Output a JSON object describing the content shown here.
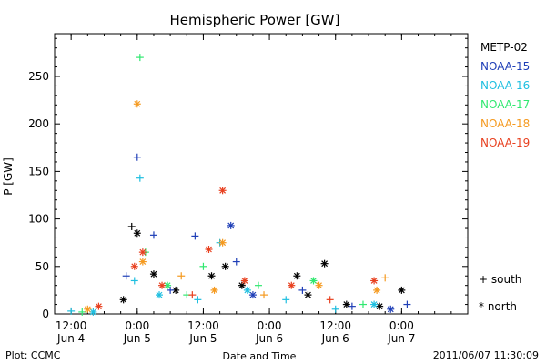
{
  "chart_data": {
    "type": "scatter",
    "title": "Hemispheric Power [GW]",
    "xlabel": "Date and Time",
    "ylabel": "P [GW]",
    "xlim": [
      "2011-06-04T09:00",
      "2011-06-07T12:00"
    ],
    "ylim": [
      0,
      295
    ],
    "yticks": [
      0,
      50,
      100,
      150,
      200,
      250
    ],
    "xticks": [
      {
        "t": "2011-06-04T12:00",
        "label1": "12:00",
        "label2": "Jun 4"
      },
      {
        "t": "2011-06-05T00:00",
        "label1": "0:00",
        "label2": "Jun 5"
      },
      {
        "t": "2011-06-05T12:00",
        "label1": "12:00",
        "label2": "Jun 5"
      },
      {
        "t": "2011-06-06T00:00",
        "label1": "0:00",
        "label2": "Jun 6"
      },
      {
        "t": "2011-06-06T12:00",
        "label1": "12:00",
        "label2": "Jun 6"
      },
      {
        "t": "2011-06-07T00:00",
        "label1": "0:00",
        "label2": "Jun 7"
      }
    ],
    "legend_position": "right",
    "markers": {
      "south": "+",
      "north": "*"
    },
    "marker_legend": [
      {
        "symbol": "+",
        "label": "south"
      },
      {
        "symbol": "*",
        "label": "north"
      }
    ],
    "series": [
      {
        "name": "METP-02",
        "color": "#000000",
        "points": [
          {
            "t": "2011-06-05T00:00",
            "v": 85,
            "h": "north"
          },
          {
            "t": "2011-06-04T23:00",
            "v": 92,
            "h": "south"
          },
          {
            "t": "2011-06-05T03:00",
            "v": 42,
            "h": "north"
          },
          {
            "t": "2011-06-05T13:30",
            "v": 40,
            "h": "north"
          },
          {
            "t": "2011-06-05T16:00",
            "v": 50,
            "h": "north"
          },
          {
            "t": "2011-06-06T10:00",
            "v": 53,
            "h": "north"
          },
          {
            "t": "2011-06-06T05:00",
            "v": 40,
            "h": "north"
          },
          {
            "t": "2011-06-07T00:00",
            "v": 25,
            "h": "north"
          },
          {
            "t": "2011-06-04T21:30",
            "v": 15,
            "h": "north"
          },
          {
            "t": "2011-06-05T07:00",
            "v": 25,
            "h": "north"
          },
          {
            "t": "2011-06-05T19:00",
            "v": 30,
            "h": "north"
          },
          {
            "t": "2011-06-06T07:00",
            "v": 20,
            "h": "north"
          },
          {
            "t": "2011-06-06T14:00",
            "v": 10,
            "h": "north"
          },
          {
            "t": "2011-06-06T20:00",
            "v": 8,
            "h": "north"
          }
        ]
      },
      {
        "name": "NOAA-15",
        "color": "#1f3fb7",
        "points": [
          {
            "t": "2011-06-05T00:00",
            "v": 165,
            "h": "south"
          },
          {
            "t": "2011-06-05T03:00",
            "v": 83,
            "h": "south"
          },
          {
            "t": "2011-06-05T10:30",
            "v": 82,
            "h": "south"
          },
          {
            "t": "2011-06-05T17:00",
            "v": 93,
            "h": "north"
          },
          {
            "t": "2011-06-05T18:00",
            "v": 55,
            "h": "south"
          },
          {
            "t": "2011-06-04T22:00",
            "v": 40,
            "h": "south"
          },
          {
            "t": "2011-06-05T06:00",
            "v": 25,
            "h": "south"
          },
          {
            "t": "2011-06-05T21:00",
            "v": 20,
            "h": "north"
          },
          {
            "t": "2011-06-06T06:00",
            "v": 25,
            "h": "south"
          },
          {
            "t": "2011-06-06T15:00",
            "v": 8,
            "h": "south"
          },
          {
            "t": "2011-06-06T22:00",
            "v": 5,
            "h": "north"
          },
          {
            "t": "2011-06-07T01:00",
            "v": 10,
            "h": "south"
          }
        ]
      },
      {
        "name": "NOAA-16",
        "color": "#1fbfe0",
        "points": [
          {
            "t": "2011-06-05T00:30",
            "v": 143,
            "h": "south"
          },
          {
            "t": "2011-06-05T15:00",
            "v": 75,
            "h": "south"
          },
          {
            "t": "2011-06-04T23:30",
            "v": 35,
            "h": "south"
          },
          {
            "t": "2011-06-05T04:00",
            "v": 20,
            "h": "north"
          },
          {
            "t": "2011-06-05T11:00",
            "v": 15,
            "h": "south"
          },
          {
            "t": "2011-06-05T20:00",
            "v": 25,
            "h": "north"
          },
          {
            "t": "2011-06-06T03:00",
            "v": 15,
            "h": "south"
          },
          {
            "t": "2011-06-06T12:00",
            "v": 5,
            "h": "south"
          },
          {
            "t": "2011-06-06T19:00",
            "v": 10,
            "h": "north"
          },
          {
            "t": "2011-06-04T12:00",
            "v": 3,
            "h": "south"
          },
          {
            "t": "2011-06-04T16:00",
            "v": 2,
            "h": "north"
          }
        ]
      },
      {
        "name": "NOAA-17",
        "color": "#30e870",
        "points": [
          {
            "t": "2011-06-05T00:30",
            "v": 270,
            "h": "south"
          },
          {
            "t": "2011-06-05T01:30",
            "v": 65,
            "h": "south"
          },
          {
            "t": "2011-06-05T12:00",
            "v": 50,
            "h": "south"
          },
          {
            "t": "2011-06-05T05:30",
            "v": 30,
            "h": "north"
          },
          {
            "t": "2011-06-05T09:00",
            "v": 20,
            "h": "south"
          },
          {
            "t": "2011-06-05T22:00",
            "v": 30,
            "h": "south"
          },
          {
            "t": "2011-06-06T08:00",
            "v": 35,
            "h": "north"
          },
          {
            "t": "2011-06-06T17:00",
            "v": 10,
            "h": "south"
          },
          {
            "t": "2011-06-04T14:00",
            "v": 2,
            "h": "south"
          }
        ]
      },
      {
        "name": "NOAA-18",
        "color": "#f59a20",
        "points": [
          {
            "t": "2011-06-05T00:00",
            "v": 221,
            "h": "north"
          },
          {
            "t": "2011-06-05T15:30",
            "v": 75,
            "h": "north"
          },
          {
            "t": "2011-06-05T01:00",
            "v": 55,
            "h": "north"
          },
          {
            "t": "2011-06-05T08:00",
            "v": 40,
            "h": "south"
          },
          {
            "t": "2011-06-05T14:00",
            "v": 25,
            "h": "north"
          },
          {
            "t": "2011-06-05T23:00",
            "v": 20,
            "h": "south"
          },
          {
            "t": "2011-06-06T09:00",
            "v": 30,
            "h": "north"
          },
          {
            "t": "2011-06-06T21:00",
            "v": 38,
            "h": "south"
          },
          {
            "t": "2011-06-06T19:30",
            "v": 25,
            "h": "north"
          },
          {
            "t": "2011-06-04T15:00",
            "v": 5,
            "h": "north"
          }
        ]
      },
      {
        "name": "NOAA-19",
        "color": "#e8401f",
        "points": [
          {
            "t": "2011-06-05T15:30",
            "v": 130,
            "h": "north"
          },
          {
            "t": "2011-06-05T13:00",
            "v": 68,
            "h": "north"
          },
          {
            "t": "2011-06-05T01:00",
            "v": 65,
            "h": "north"
          },
          {
            "t": "2011-06-04T23:30",
            "v": 50,
            "h": "north"
          },
          {
            "t": "2011-06-05T04:30",
            "v": 30,
            "h": "north"
          },
          {
            "t": "2011-06-05T10:00",
            "v": 20,
            "h": "south"
          },
          {
            "t": "2011-06-05T19:30",
            "v": 35,
            "h": "north"
          },
          {
            "t": "2011-06-06T04:00",
            "v": 30,
            "h": "north"
          },
          {
            "t": "2011-06-06T11:00",
            "v": 15,
            "h": "south"
          },
          {
            "t": "2011-06-06T19:00",
            "v": 35,
            "h": "north"
          },
          {
            "t": "2011-06-04T17:00",
            "v": 8,
            "h": "north"
          }
        ]
      }
    ]
  },
  "footer": {
    "left": "Plot: CCMC",
    "right": "2011/06/07 11:30:09"
  }
}
